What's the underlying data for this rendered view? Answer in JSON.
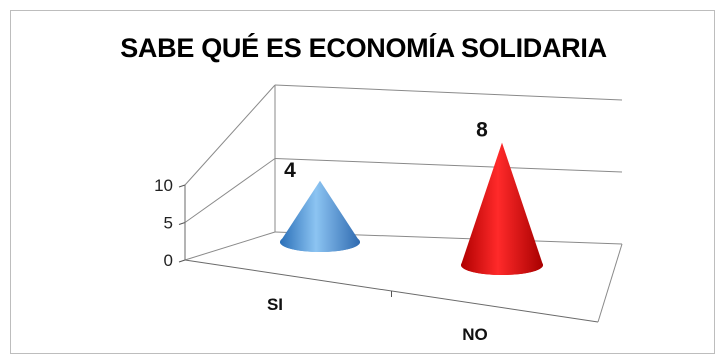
{
  "chart_data": {
    "type": "bar",
    "style": "3d-cone",
    "title": "SABE QUÉ ES ECONOMÍA SOLIDARIA",
    "categories": [
      "SI",
      "NO"
    ],
    "values": [
      4,
      8
    ],
    "colors": [
      "#4f93d6",
      "#e00000"
    ],
    "ylim": [
      0,
      10
    ],
    "yticks": [
      0,
      5,
      10
    ],
    "grid": true,
    "legend": "none",
    "data_labels": [
      "4",
      "8"
    ]
  }
}
